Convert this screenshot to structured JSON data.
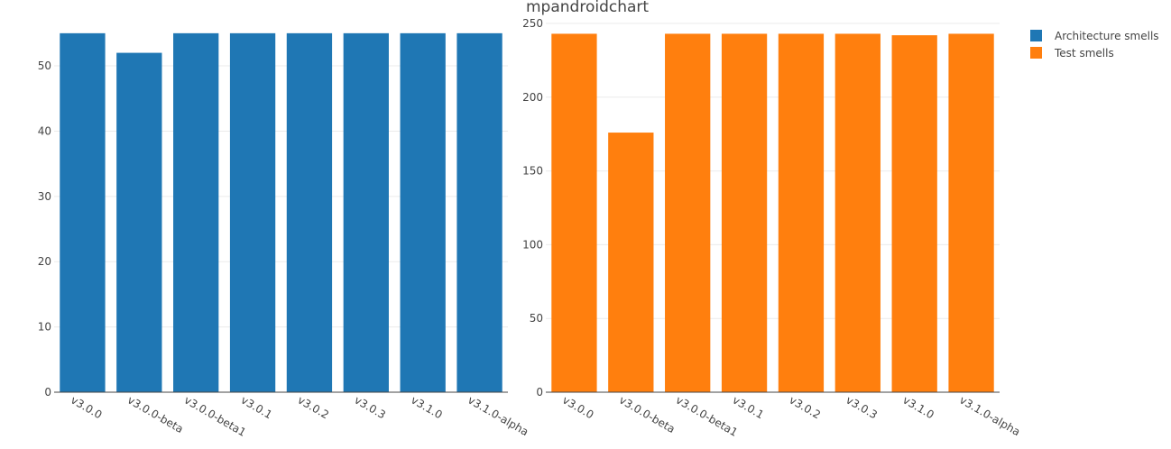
{
  "chart_data": [
    {
      "type": "bar",
      "title": "mpandroidchart",
      "categories": [
        "v3.0.0",
        "v3.0.0-beta",
        "v3.0.0-beta1",
        "v3.0.1",
        "v3.0.2",
        "v3.0.3",
        "v3.1.0",
        "v3.1.0-alpha"
      ],
      "series": [
        {
          "name": "Architecture smells",
          "color": "#1f77b4",
          "values": [
            55,
            52,
            55,
            55,
            55,
            55,
            55,
            55
          ]
        }
      ],
      "ylim": [
        0,
        56.5
      ],
      "yticks": [
        0,
        10,
        20,
        30,
        40,
        50
      ],
      "xlabel": "",
      "ylabel": "",
      "grid": true
    },
    {
      "type": "bar",
      "categories": [
        "v3.0.0",
        "v3.0.0-beta",
        "v3.0.0-beta1",
        "v3.0.1",
        "v3.0.2",
        "v3.0.3",
        "v3.1.0",
        "v3.1.0-alpha"
      ],
      "series": [
        {
          "name": "Test smells",
          "color": "#ff7f0e",
          "values": [
            243,
            176,
            243,
            243,
            243,
            243,
            242,
            243
          ]
        }
      ],
      "ylim": [
        0,
        250
      ],
      "yticks": [
        0,
        50,
        100,
        150,
        200,
        250
      ],
      "xlabel": "",
      "ylabel": "",
      "grid": true
    }
  ],
  "legend": {
    "position": "top-right",
    "items": [
      {
        "label": "Architecture smells",
        "color": "#1f77b4"
      },
      {
        "label": "Test smells",
        "color": "#ff7f0e"
      }
    ]
  }
}
